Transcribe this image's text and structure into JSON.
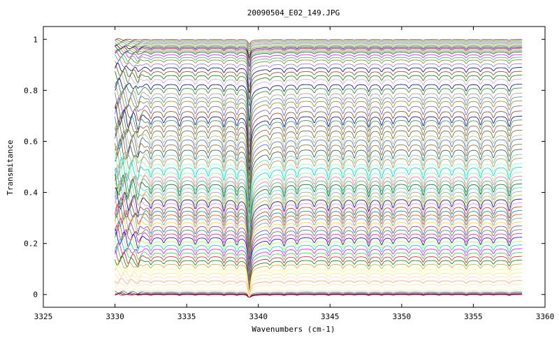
{
  "chart_data": {
    "type": "line",
    "title": "20090504_E02_149.JPG",
    "xlabel": "Wavenumbers (cm-1)",
    "ylabel": "Transmitance",
    "xlim": [
      3325,
      3360
    ],
    "ylim": [
      -0.05,
      1.05
    ],
    "x_ticks": [
      3325,
      3330,
      3335,
      3340,
      3345,
      3350,
      3355,
      3360
    ],
    "x_tick_labels": [
      "3325",
      "3330",
      "3335",
      "3340",
      "3345",
      "3350",
      "3355",
      "3360"
    ],
    "y_ticks": [
      0,
      0.2,
      0.4,
      0.6,
      0.8,
      1
    ],
    "y_tick_labels": [
      "0",
      "0.2",
      "0.4",
      "0.6",
      "0.8",
      "1"
    ],
    "grid": false,
    "legend": "none",
    "x_range_data": [
      3330,
      3358.4
    ],
    "absorption_lines": [
      3330.9,
      3331.6,
      3332.5,
      3333.4,
      3334.5,
      3335.6,
      3336.5,
      3337.6,
      3338.5,
      3339.35,
      3340.8,
      3341.8,
      3342.7,
      3343.9,
      3344.9,
      3345.9,
      3346.7,
      3347.7,
      3348.6,
      3349.4,
      3350.5,
      3351.5,
      3352.6,
      3353.5,
      3354.5,
      3355.5,
      3356.4,
      3357.5
    ],
    "series": [
      {
        "baseline": 1.0,
        "color": "#8b4513"
      },
      {
        "baseline": 0.995,
        "color": "#2e8b57"
      },
      {
        "baseline": 0.99,
        "color": "#ff6347"
      },
      {
        "baseline": 0.985,
        "color": "#1e90ff"
      },
      {
        "baseline": 0.98,
        "color": "#9acd32"
      },
      {
        "baseline": 0.975,
        "color": "#808000"
      },
      {
        "baseline": 0.97,
        "color": "#00008b"
      },
      {
        "baseline": 0.965,
        "color": "#8b008b"
      },
      {
        "baseline": 0.96,
        "color": "#ff8c00"
      },
      {
        "baseline": 0.955,
        "color": "#20b2aa"
      },
      {
        "baseline": 0.95,
        "color": "#006400"
      },
      {
        "baseline": 0.94,
        "color": "#ff00ff"
      },
      {
        "baseline": 0.93,
        "color": "#3cb371"
      },
      {
        "baseline": 0.92,
        "color": "#6b8e23"
      },
      {
        "baseline": 0.905,
        "color": "#9370db"
      },
      {
        "baseline": 0.89,
        "color": "#000080"
      },
      {
        "baseline": 0.875,
        "color": "#8b4513"
      },
      {
        "baseline": 0.86,
        "color": "#008000"
      },
      {
        "baseline": 0.845,
        "color": "#dda0dd"
      },
      {
        "baseline": 0.825,
        "color": "#00008b"
      },
      {
        "baseline": 0.81,
        "color": "#228b22"
      },
      {
        "baseline": 0.79,
        "color": "#bc8f8f"
      },
      {
        "baseline": 0.775,
        "color": "#4682b4"
      },
      {
        "baseline": 0.76,
        "color": "#9b870c"
      },
      {
        "baseline": 0.74,
        "color": "#6a5acd"
      },
      {
        "baseline": 0.72,
        "color": "#8b4513"
      },
      {
        "baseline": 0.7,
        "color": "#00008b"
      },
      {
        "baseline": 0.685,
        "color": "#2e8b57"
      },
      {
        "baseline": 0.665,
        "color": "#a0522d"
      },
      {
        "baseline": 0.645,
        "color": "#556b2f"
      },
      {
        "baseline": 0.625,
        "color": "#bdb76b"
      },
      {
        "baseline": 0.61,
        "color": "#4169e1"
      },
      {
        "baseline": 0.59,
        "color": "#8b6914"
      },
      {
        "baseline": 0.57,
        "color": "#2f4f4f"
      },
      {
        "baseline": 0.55,
        "color": "#66cdaa"
      },
      {
        "baseline": 0.535,
        "color": "#cd853f"
      },
      {
        "baseline": 0.515,
        "color": "#7fffd4"
      },
      {
        "baseline": 0.5,
        "color": "#00ced1"
      },
      {
        "baseline": 0.48,
        "color": "#90ee90"
      },
      {
        "baseline": 0.465,
        "color": "#ff69b4"
      },
      {
        "baseline": 0.45,
        "color": "#3cb371"
      },
      {
        "baseline": 0.435,
        "color": "#006400"
      },
      {
        "baseline": 0.42,
        "color": "#48d1cc"
      },
      {
        "baseline": 0.405,
        "color": "#bc8f8f"
      },
      {
        "baseline": 0.39,
        "color": "#9acd32"
      },
      {
        "baseline": 0.375,
        "color": "#000080"
      },
      {
        "baseline": 0.36,
        "color": "#ee82ee"
      },
      {
        "baseline": 0.345,
        "color": "#8b4513"
      },
      {
        "baseline": 0.33,
        "color": "#008b8b"
      },
      {
        "baseline": 0.315,
        "color": "#ff4500"
      },
      {
        "baseline": 0.3,
        "color": "#6495ed"
      },
      {
        "baseline": 0.285,
        "color": "#ffd700"
      },
      {
        "baseline": 0.27,
        "color": "#8a2be2"
      },
      {
        "baseline": 0.255,
        "color": "#2e8b57"
      },
      {
        "baseline": 0.24,
        "color": "#ff1493"
      },
      {
        "baseline": 0.225,
        "color": "#0000cd"
      },
      {
        "baseline": 0.21,
        "color": "#adff2f"
      },
      {
        "baseline": 0.195,
        "color": "#00bfff"
      },
      {
        "baseline": 0.18,
        "color": "#ff00ff"
      },
      {
        "baseline": 0.165,
        "color": "#32cd32"
      },
      {
        "baseline": 0.15,
        "color": "#dc143c"
      },
      {
        "baseline": 0.135,
        "color": "#008000"
      },
      {
        "baseline": 0.12,
        "color": "#daa520"
      },
      {
        "baseline": 0.1,
        "color": "#ffff66"
      },
      {
        "baseline": 0.085,
        "color": "#f0e68c"
      },
      {
        "baseline": 0.07,
        "color": "#ffdead"
      },
      {
        "baseline": 0.055,
        "color": "#ffa07a"
      },
      {
        "baseline": 0.04,
        "color": "#ffe4b5"
      },
      {
        "baseline": 0.028,
        "color": "#fafad2"
      },
      {
        "baseline": 0.018,
        "color": "#ffdab9"
      },
      {
        "baseline": 0.01,
        "color": "#228b22"
      },
      {
        "baseline": 0.005,
        "color": "#8b008b"
      },
      {
        "baseline": 0.002,
        "color": "#000080"
      },
      {
        "baseline": 0.0,
        "color": "#ff0000"
      }
    ]
  }
}
